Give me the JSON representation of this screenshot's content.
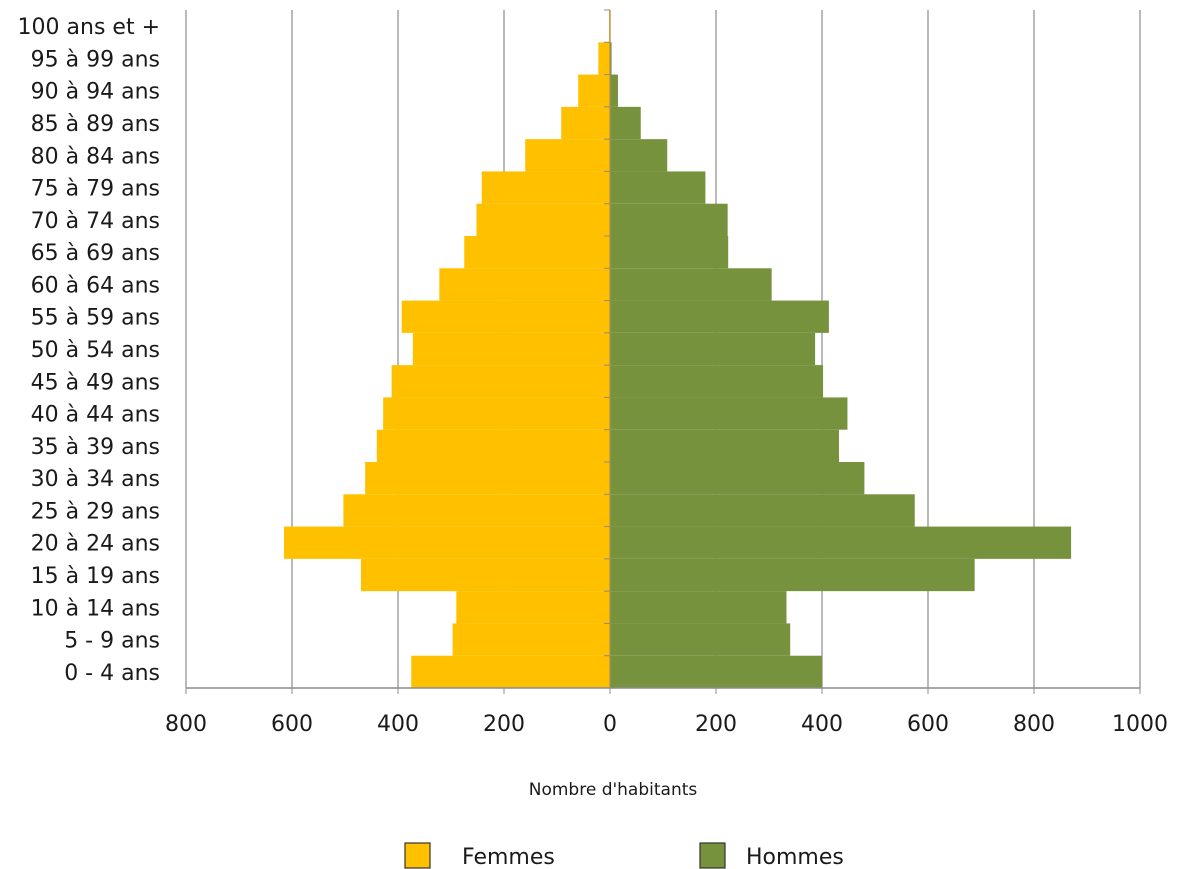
{
  "chart_data": {
    "type": "bar",
    "orientation": "horizontal",
    "layout": "population-pyramid",
    "categories": [
      "0 - 4 ans",
      "5 - 9 ans",
      "10 à 14 ans",
      "15 à 19 ans",
      "20 à 24 ans",
      "25 à 29 ans",
      "30 à 34 ans",
      "35 à 39 ans",
      "40 à 44 ans",
      "45 à 49 ans",
      "50 à 54 ans",
      "55 à 59 ans",
      "60 à 64 ans",
      "65 à 69 ans",
      "70 à 74 ans",
      "75 à 79 ans",
      "80 à 84 ans",
      "85 à 89 ans",
      "90 à 94 ans",
      "95 à 99 ans",
      "100 ans et +"
    ],
    "series": [
      {
        "name": "Femmes",
        "color": "#FFC000",
        "side": "left",
        "values": [
          375,
          297,
          290,
          470,
          615,
          503,
          462,
          440,
          428,
          412,
          372,
          393,
          322,
          275,
          252,
          242,
          160,
          92,
          60,
          22,
          2
        ]
      },
      {
        "name": "Hommes",
        "color": "#76923C",
        "side": "right",
        "values": [
          400,
          340,
          333,
          688,
          870,
          575,
          480,
          432,
          448,
          402,
          387,
          413,
          305,
          223,
          222,
          180,
          108,
          58,
          15,
          3,
          1
        ]
      }
    ],
    "xlim": [
      -800,
      1000
    ],
    "xticks": [
      -800,
      -600,
      -400,
      -200,
      0,
      200,
      400,
      600,
      800,
      1000
    ],
    "tick_labels": [
      "800",
      "600",
      "400",
      "200",
      "0",
      "200",
      "400",
      "600",
      "800",
      "1000"
    ],
    "xlabel": "Nombre d'habitants",
    "grid": true,
    "legend_position": "bottom"
  }
}
